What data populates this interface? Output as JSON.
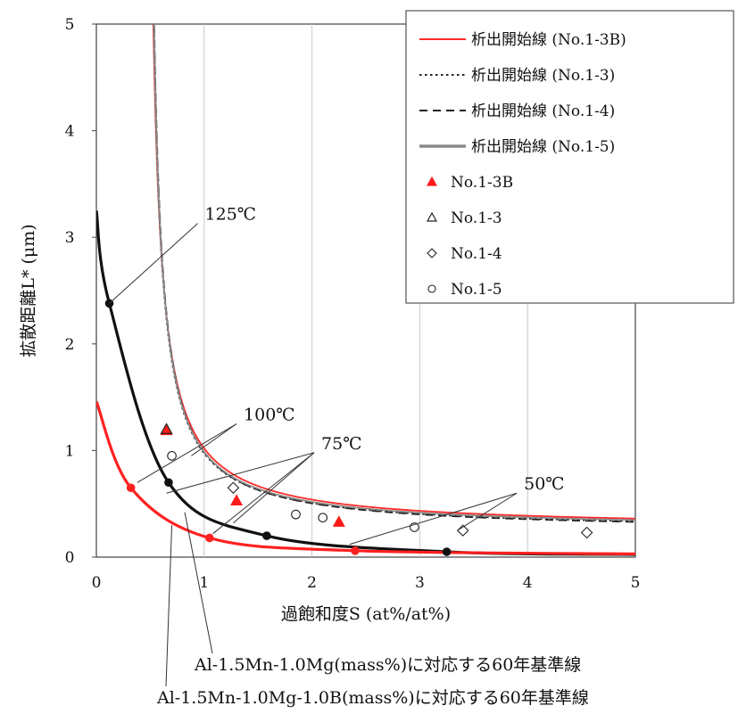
{
  "chart_data": {
    "type": "line",
    "xlabel": "過飽和度S (at%/at%)",
    "ylabel": "拡散距離L* (μm)",
    "xlim": [
      0,
      5
    ],
    "ylim": [
      0,
      5
    ],
    "xticks": [
      "0",
      "1",
      "2",
      "3",
      "4",
      "5"
    ],
    "yticks": [
      "0",
      "1",
      "2",
      "3",
      "4",
      "5"
    ],
    "grid": "vertical",
    "legend_position": "top-right",
    "series": [
      {
        "name": "析出開始線 (No.1-3B)",
        "kind": "curve",
        "color": "#ff2b2b",
        "style": "solid",
        "asymptote_x": 0.44,
        "k": 0.42,
        "c": 0.27
      },
      {
        "name": "析出開始線 (No.1-3)",
        "kind": "curve",
        "color": "#222222",
        "style": "dotted",
        "asymptote_x": 0.45,
        "k": 0.4,
        "c": 0.25
      },
      {
        "name": "析出開始線 (No.1-4)",
        "kind": "curve",
        "color": "#222222",
        "style": "dashed",
        "asymptote_x": 0.45,
        "k": 0.41,
        "c": 0.24
      },
      {
        "name": "析出開始線 (No.1-5)",
        "kind": "curve",
        "color": "#8a8a8a",
        "style": "solid",
        "asymptote_x": 0.45,
        "k": 0.4,
        "c": 0.26
      },
      {
        "name": "No.1-3B",
        "kind": "points",
        "marker": "triangle-filled",
        "color": "#ff1a1a",
        "points": [
          [
            0.65,
            1.19
          ],
          [
            1.3,
            0.53
          ],
          [
            2.25,
            0.33
          ]
        ]
      },
      {
        "name": "No.1-3",
        "kind": "points",
        "marker": "triangle-open",
        "color": "#222222",
        "points": [
          [
            0.65,
            1.2
          ]
        ]
      },
      {
        "name": "No.1-4",
        "kind": "points",
        "marker": "diamond-open",
        "color": "#222222",
        "points": [
          [
            1.27,
            0.65
          ],
          [
            3.4,
            0.25
          ],
          [
            4.55,
            0.23
          ]
        ]
      },
      {
        "name": "No.1-5",
        "kind": "points",
        "marker": "circle-open",
        "color": "#222222",
        "points": [
          [
            0.7,
            0.95
          ],
          [
            1.85,
            0.4
          ],
          [
            2.1,
            0.37
          ],
          [
            2.95,
            0.28
          ]
        ]
      },
      {
        "name": "",
        "kind": "baseline",
        "label_key": "baselines.0",
        "color": "#111111",
        "width": 3.2,
        "x0": 0.0,
        "y0": 3.25,
        "points": [
          [
            0.12,
            2.38
          ],
          [
            0.67,
            0.7
          ],
          [
            1.58,
            0.2
          ],
          [
            3.25,
            0.05
          ]
        ]
      },
      {
        "name": "",
        "kind": "baseline",
        "label_key": "baselines.1",
        "color": "#ff2020",
        "width": 3.2,
        "x0": 0.0,
        "y0": 1.46,
        "points": [
          [
            0.32,
            0.65
          ],
          [
            1.05,
            0.18
          ],
          [
            2.4,
            0.06
          ]
        ]
      }
    ],
    "annotations": [
      {
        "text": "125℃",
        "target": [
          0.12,
          2.38
        ],
        "tail": [
          0.94,
          3.13
        ]
      },
      {
        "text": "100℃",
        "targets": [
          [
            0.38,
            0.7
          ],
          [
            0.88,
            0.95
          ]
        ],
        "tail": [
          1.3,
          1.25
        ]
      },
      {
        "text": "75℃",
        "targets": [
          [
            0.65,
            0.6
          ],
          [
            1.08,
            0.22
          ],
          [
            1.27,
            0.32
          ]
        ],
        "tail": [
          2.02,
          0.98
        ]
      },
      {
        "text": "50℃",
        "targets": [
          [
            2.35,
            0.12
          ],
          [
            3.35,
            0.25
          ]
        ],
        "tail": [
          3.9,
          0.6
        ]
      }
    ]
  },
  "baselines": [
    "Al-1.5Mn-1.0Mg(mass%)に対応する60年基準線",
    "Al-1.5Mn-1.0Mg-1.0B(mass%)に対応する60年基準線"
  ],
  "colors": {
    "red": "#ff2020",
    "black": "#111111",
    "grey": "#8a8a8a",
    "grid": "#c8c8c8"
  }
}
